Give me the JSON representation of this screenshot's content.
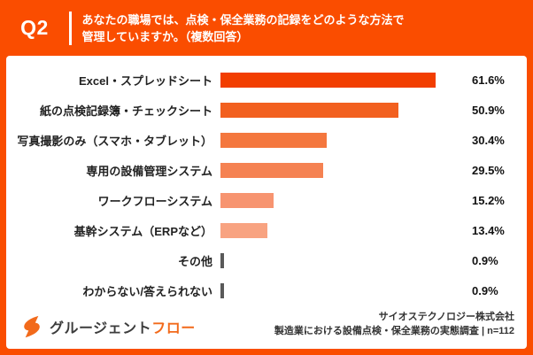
{
  "header": {
    "question_number": "Q2",
    "question_line1": "あなたの職場では、点検・保全業務の記録をどのような方法で",
    "question_line2": "管理していますか。（複数回答）"
  },
  "chart_data": {
    "type": "bar",
    "orientation": "horizontal",
    "title": "あなたの職場では、点検・保全業務の記録をどのような方法で管理していますか。（複数回答）",
    "unit": "%",
    "xlim": [
      0,
      70
    ],
    "grid": false,
    "legend": "none",
    "categories": [
      "Excel・スプレッドシート",
      "紙の点検記録簿・チェックシート",
      "写真撮影のみ（スマホ・タブレット）",
      "専用の設備管理システム",
      "ワークフローシステム",
      "基幹システム（ERPなど）",
      "その他",
      "わからない/答えられない"
    ],
    "values": [
      61.6,
      50.9,
      30.4,
      29.5,
      15.2,
      13.4,
      0.9,
      0.9
    ],
    "items": [
      {
        "label": "Excel・スプレッドシート",
        "value": 61.6,
        "display": "61.6%",
        "color": "#F23E00"
      },
      {
        "label": "紙の点検記録簿・チェックシート",
        "value": 50.9,
        "display": "50.9%",
        "color": "#F2601F"
      },
      {
        "label": "写真撮影のみ（スマホ・タブレット）",
        "value": 30.4,
        "display": "30.4%",
        "color": "#F4773E"
      },
      {
        "label": "専用の設備管理システム",
        "value": 29.5,
        "display": "29.5%",
        "color": "#F58252"
      },
      {
        "label": "ワークフローシステム",
        "value": 15.2,
        "display": "15.2%",
        "color": "#F79470"
      },
      {
        "label": "基幹システム（ERPなど）",
        "value": 13.4,
        "display": "13.4%",
        "color": "#F8A381"
      },
      {
        "label": "その他",
        "value": 0.9,
        "display": "0.9%",
        "color": "#595959"
      },
      {
        "label": "わからない/答えられない",
        "value": 0.9,
        "display": "0.9%",
        "color": "#595959"
      }
    ]
  },
  "footer": {
    "logo_text_main": "グルージェント",
    "logo_text_accent": "フロー",
    "source_line1": "サイオステクノロジー株式会社",
    "source_line2": "製造業における設備点検・保全業務の実態調査 | n=112"
  },
  "colors": {
    "background": "#FA4D00",
    "card": "#FFFFFF",
    "header_text": "#FFFFFF",
    "label_text": "#222222",
    "value_text": "#111111",
    "source_text": "#333333",
    "logo_accent": "#F26A1B"
  }
}
